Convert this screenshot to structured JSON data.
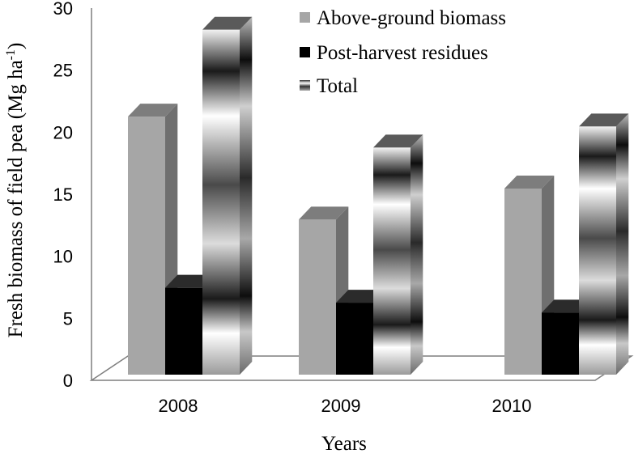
{
  "chart_data": {
    "type": "bar",
    "style": "3d-clustered-column",
    "categories": [
      "2008",
      "2009",
      "2010"
    ],
    "series": [
      {
        "name": "Above-ground biomass",
        "values": [
          20.8,
          12.5,
          15.0
        ],
        "color": "#a6a6a6"
      },
      {
        "name": "Post-harvest residues",
        "values": [
          7.0,
          5.8,
          5.0
        ],
        "color": "#000000"
      },
      {
        "name": "Total",
        "values": [
          27.8,
          18.3,
          20.0
        ],
        "color": "gradient-banded"
      }
    ],
    "xlabel": "Years",
    "ylabel_main": "Fresh biomass of field pea (Mg ha",
    "ylabel_sup": "-1",
    "ylabel_end": ")",
    "ylim": [
      0,
      30
    ],
    "yticks": [
      0,
      5,
      10,
      15,
      20,
      25,
      30
    ],
    "grid": false,
    "legend_position": "top-right"
  }
}
